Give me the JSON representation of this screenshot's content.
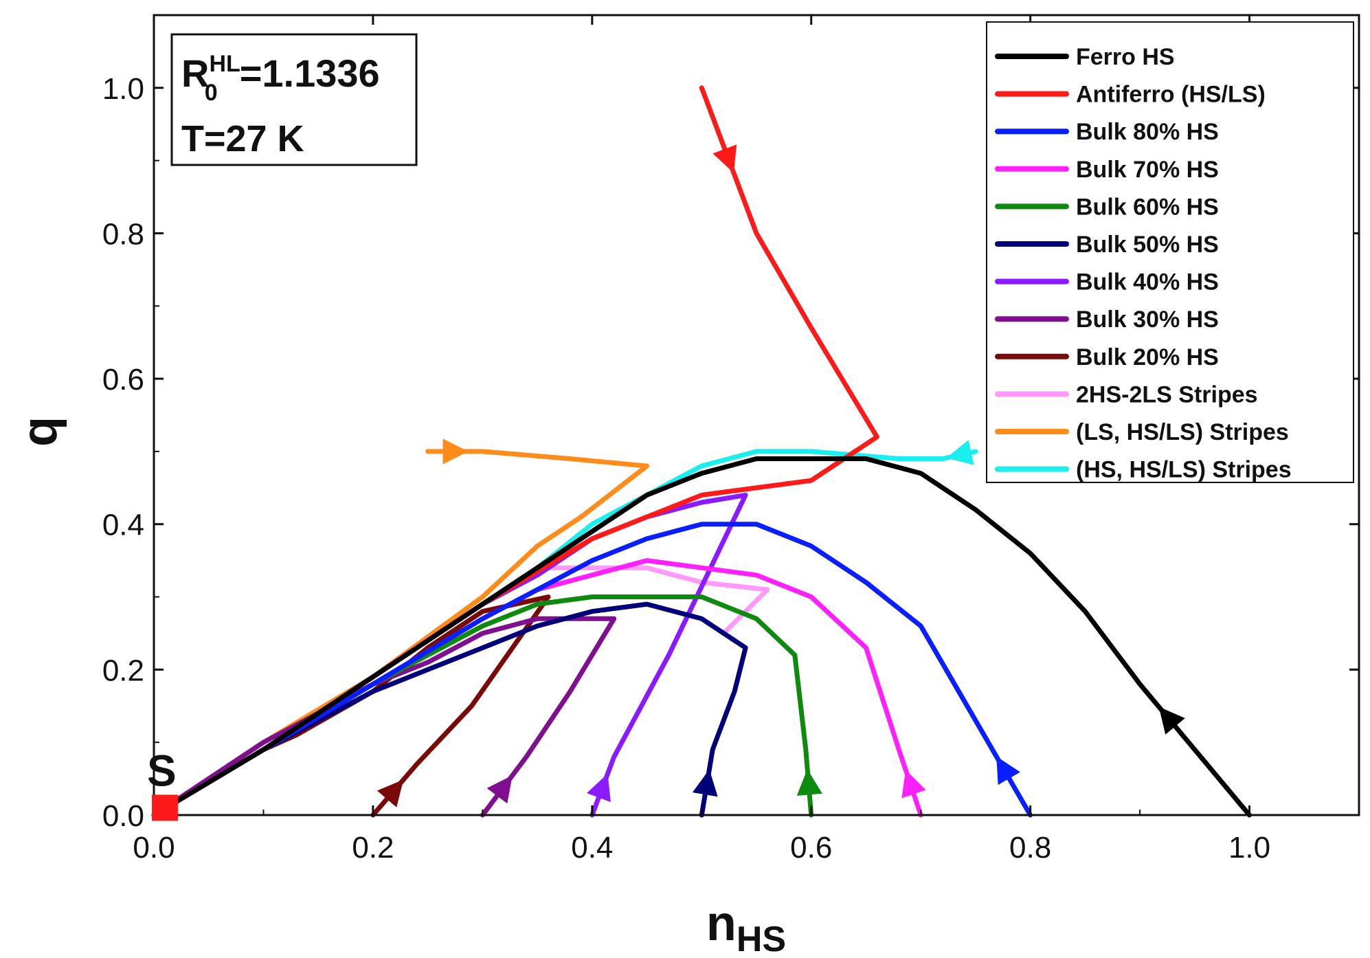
{
  "chart_data": {
    "type": "line",
    "title": "",
    "xlabel": "n",
    "xlabel_sub": "HS",
    "ylabel": "q",
    "xlim": [
      0.0,
      1.1
    ],
    "ylim": [
      0.0,
      1.1
    ],
    "xticks": [
      0.0,
      0.2,
      0.4,
      0.6,
      0.8,
      1.0
    ],
    "yticks": [
      0.0,
      0.2,
      0.4,
      0.6,
      0.8,
      1.0
    ],
    "xtick_labels": [
      "0.0",
      "0.2",
      "0.4",
      "0.6",
      "0.8",
      "1.0"
    ],
    "ytick_labels": [
      "0.0",
      "0.2",
      "0.4",
      "0.6",
      "0.8",
      "1.0"
    ],
    "legend_position": "top-right",
    "info_box": {
      "r_base": "R",
      "r_sub": "0",
      "r_sup": "HL",
      "r_value": "=1.1336",
      "temperature": "T=27 K"
    },
    "start_marker": {
      "label": "S",
      "x": 0.01,
      "y": 0.01,
      "color": "#ff1a1a"
    },
    "series": [
      {
        "name": "Ferro HS",
        "color": "#000000",
        "x": [
          1.0,
          0.95,
          0.9,
          0.85,
          0.8,
          0.75,
          0.7,
          0.65,
          0.6,
          0.55,
          0.5,
          0.45,
          0.4,
          0.35,
          0.3,
          0.2,
          0.1,
          0.0
        ],
        "y": [
          0.0,
          0.09,
          0.18,
          0.28,
          0.36,
          0.42,
          0.47,
          0.49,
          0.49,
          0.49,
          0.47,
          0.44,
          0.39,
          0.34,
          0.29,
          0.19,
          0.09,
          0.0
        ],
        "arrows": [
          2
        ]
      },
      {
        "name": "Antiferro (HS/LS)",
        "color": "#ff1a1a",
        "x": [
          0.5,
          0.55,
          0.6,
          0.66,
          0.6,
          0.5,
          0.4,
          0.3,
          0.2,
          0.1,
          0.0
        ],
        "y": [
          1.0,
          0.8,
          0.67,
          0.52,
          0.46,
          0.44,
          0.38,
          0.29,
          0.19,
          0.09,
          0.0
        ],
        "arrows": [
          1
        ]
      },
      {
        "name": "Bulk 80% HS",
        "color": "#0a1fff",
        "x": [
          0.8,
          0.75,
          0.7,
          0.65,
          0.6,
          0.55,
          0.5,
          0.45,
          0.4,
          0.35,
          0.3,
          0.2,
          0.1,
          0.0
        ],
        "y": [
          0.0,
          0.13,
          0.26,
          0.32,
          0.37,
          0.4,
          0.4,
          0.38,
          0.35,
          0.31,
          0.27,
          0.18,
          0.09,
          0.0
        ],
        "arrows": [
          1
        ]
      },
      {
        "name": "Bulk 70% HS",
        "color": "#ff20ff",
        "x": [
          0.7,
          0.68,
          0.65,
          0.6,
          0.55,
          0.5,
          0.45,
          0.4,
          0.35,
          0.3,
          0.2,
          0.1,
          0.0
        ],
        "y": [
          0.0,
          0.09,
          0.23,
          0.3,
          0.33,
          0.34,
          0.35,
          0.33,
          0.31,
          0.27,
          0.18,
          0.09,
          0.0
        ],
        "arrows": [
          1
        ]
      },
      {
        "name": "Bulk 60% HS",
        "color": "#0e8a0e",
        "x": [
          0.6,
          0.595,
          0.585,
          0.55,
          0.5,
          0.45,
          0.4,
          0.35,
          0.3,
          0.2,
          0.1,
          0.0
        ],
        "y": [
          0.0,
          0.09,
          0.22,
          0.27,
          0.3,
          0.3,
          0.3,
          0.29,
          0.26,
          0.18,
          0.09,
          0.0
        ],
        "arrows": [
          1
        ]
      },
      {
        "name": "Bulk 50% HS",
        "color": "#00007a",
        "x": [
          0.5,
          0.51,
          0.53,
          0.54,
          0.5,
          0.45,
          0.4,
          0.35,
          0.3,
          0.2,
          0.1,
          0.0
        ],
        "y": [
          0.0,
          0.09,
          0.17,
          0.23,
          0.27,
          0.29,
          0.28,
          0.26,
          0.23,
          0.17,
          0.09,
          0.0
        ],
        "arrows": [
          1
        ]
      },
      {
        "name": "Bulk 40% HS",
        "color": "#8a1aff",
        "x": [
          0.4,
          0.42,
          0.47,
          0.54,
          0.5,
          0.45,
          0.4,
          0.35,
          0.3,
          0.2,
          0.1,
          0.0
        ],
        "y": [
          0.0,
          0.08,
          0.22,
          0.44,
          0.43,
          0.41,
          0.38,
          0.33,
          0.29,
          0.19,
          0.09,
          0.0
        ],
        "arrows": [
          1
        ]
      },
      {
        "name": "Bulk 30% HS",
        "color": "#7f0f8f",
        "x": [
          0.3,
          0.34,
          0.38,
          0.42,
          0.35,
          0.3,
          0.25,
          0.2,
          0.15,
          0.1,
          0.0
        ],
        "y": [
          0.0,
          0.08,
          0.17,
          0.27,
          0.27,
          0.25,
          0.21,
          0.18,
          0.14,
          0.1,
          0.0
        ],
        "arrows": [
          1
        ]
      },
      {
        "name": "Bulk 20% HS",
        "color": "#7a0a0a",
        "x": [
          0.2,
          0.24,
          0.29,
          0.36,
          0.3,
          0.25,
          0.2,
          0.13,
          0.1,
          0.0
        ],
        "y": [
          0.0,
          0.07,
          0.15,
          0.3,
          0.28,
          0.23,
          0.17,
          0.11,
          0.09,
          0.0
        ],
        "arrows": [
          1
        ]
      },
      {
        "name": "2HS-2LS Stripes",
        "color": "#ff99ff",
        "x": [
          0.52,
          0.56,
          0.5,
          0.45,
          0.4,
          0.35,
          0.3,
          0.2,
          0.1,
          0.0
        ],
        "y": [
          0.25,
          0.31,
          0.32,
          0.34,
          0.34,
          0.34,
          0.29,
          0.19,
          0.09,
          0.0
        ],
        "arrows": []
      },
      {
        "name": "(LS, HS/LS) Stripes",
        "color": "#ff8c1a",
        "x": [
          0.25,
          0.3,
          0.38,
          0.45,
          0.39,
          0.35,
          0.3,
          0.2,
          0.1,
          0.0
        ],
        "y": [
          0.5,
          0.5,
          0.49,
          0.48,
          0.41,
          0.37,
          0.3,
          0.19,
          0.1,
          0.0
        ],
        "arrows": [
          1
        ]
      },
      {
        "name": "(HS, HS/LS) Stripes",
        "color": "#1aeeee",
        "x": [
          0.75,
          0.72,
          0.68,
          0.6,
          0.55,
          0.5,
          0.45,
          0.4,
          0.35,
          0.3,
          0.2,
          0.1,
          0.0
        ],
        "y": [
          0.5,
          0.49,
          0.49,
          0.5,
          0.5,
          0.48,
          0.44,
          0.4,
          0.34,
          0.29,
          0.19,
          0.09,
          0.0
        ],
        "arrows": [
          1
        ]
      }
    ]
  }
}
